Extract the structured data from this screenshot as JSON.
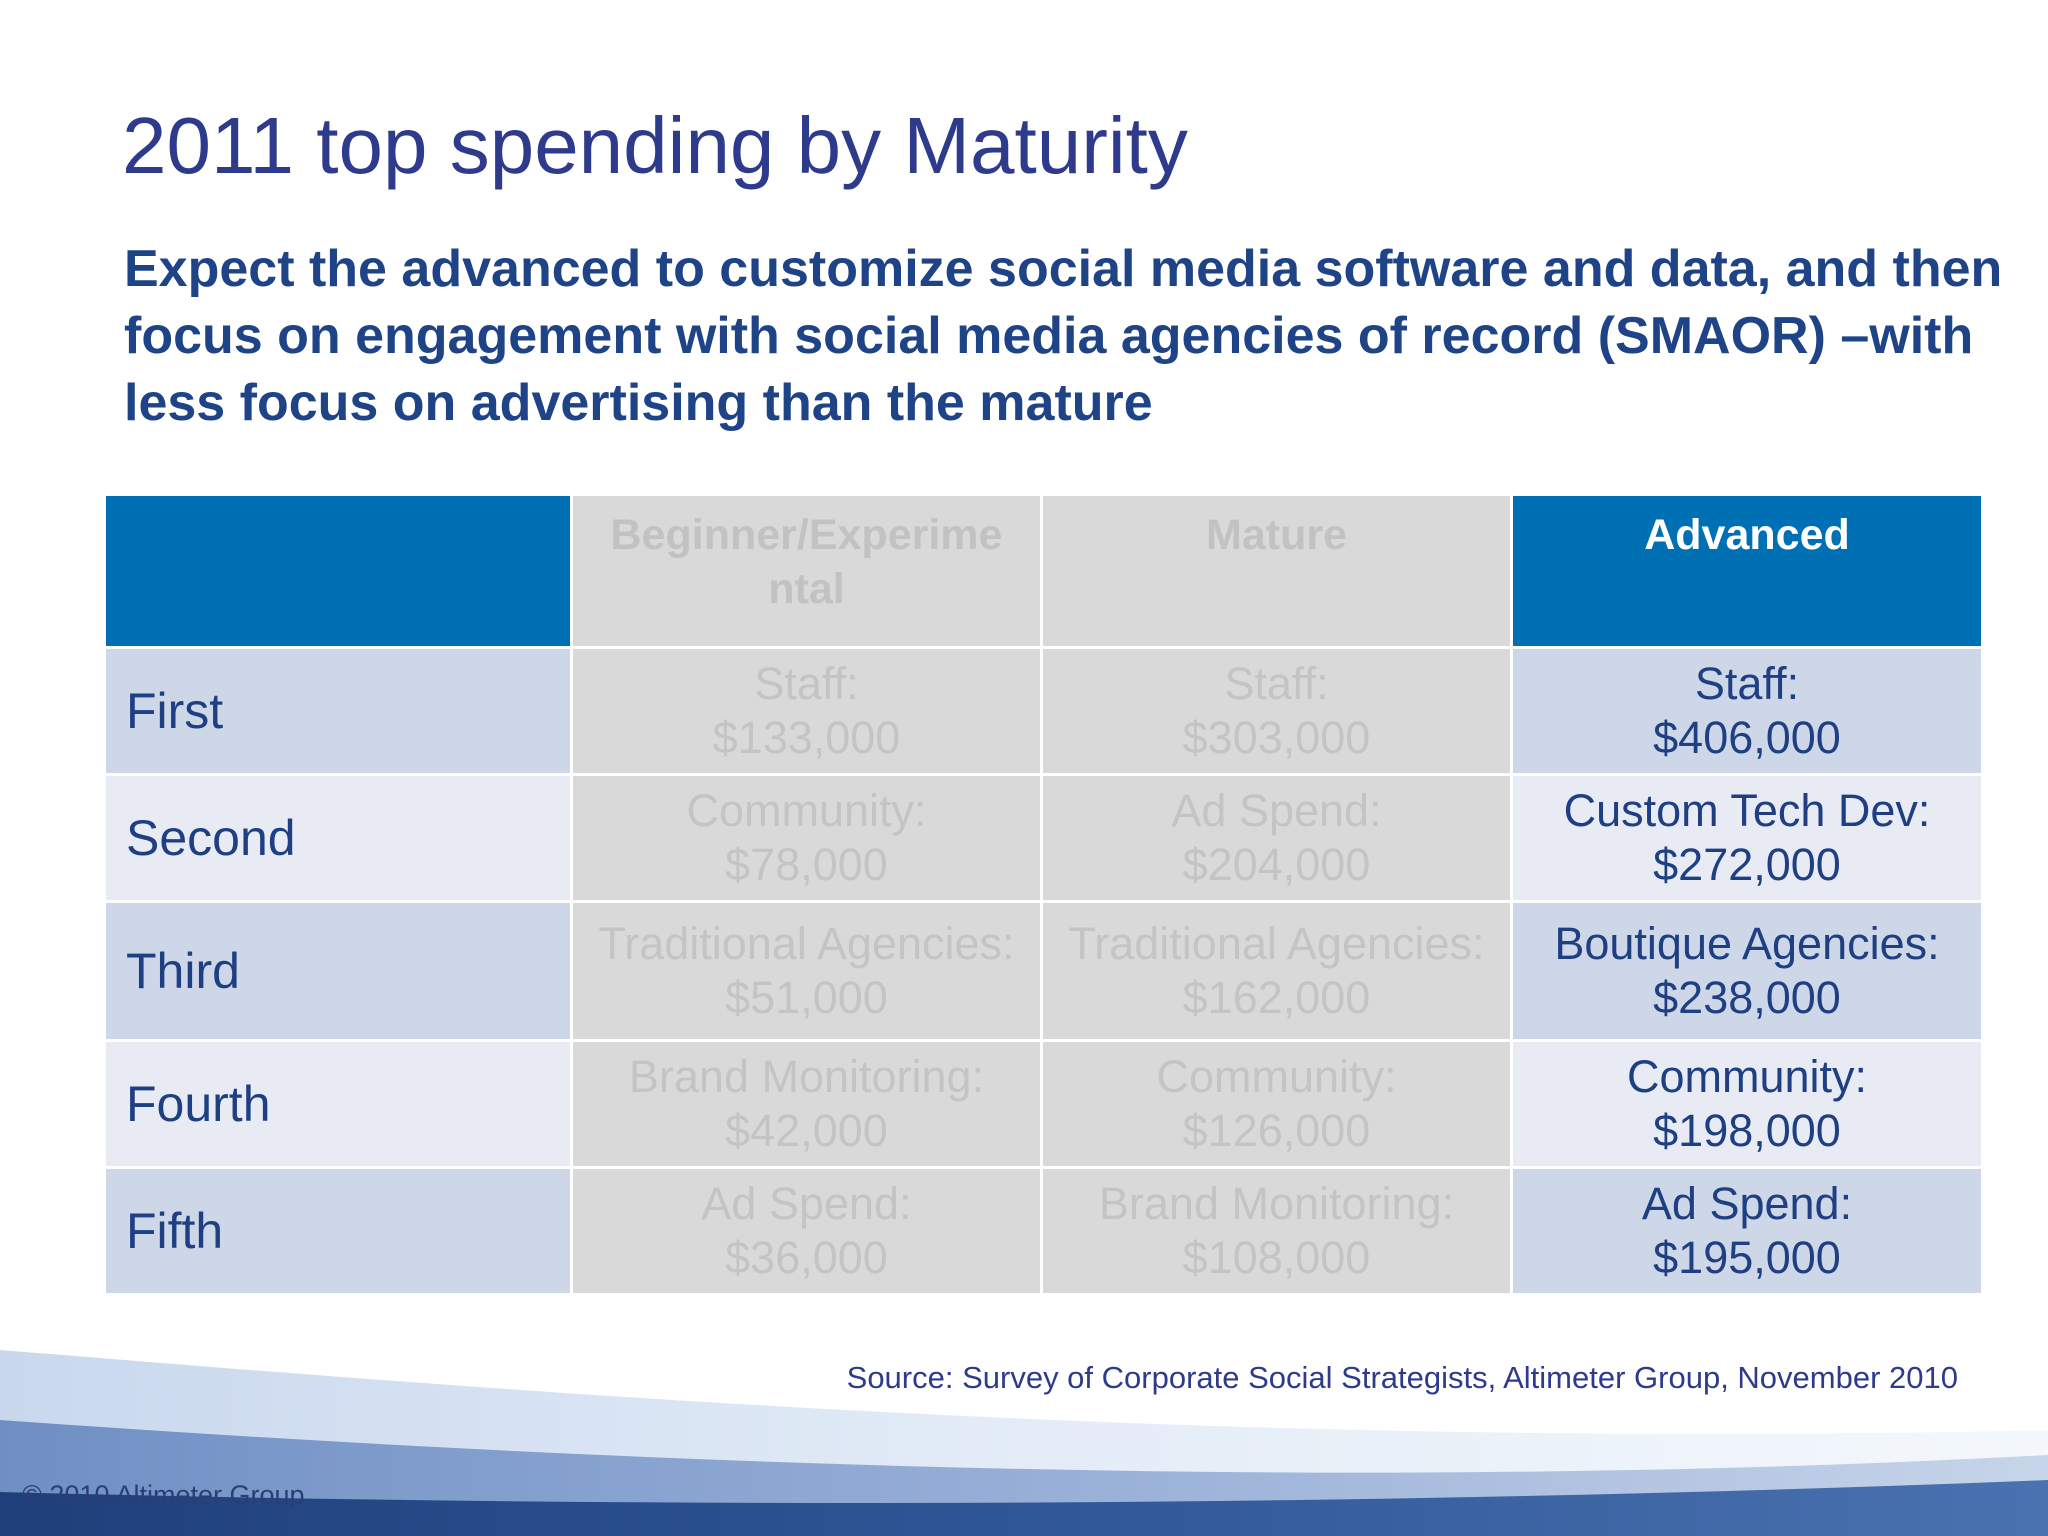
{
  "title": "2011 top spending by Maturity",
  "subtitle": "Expect the advanced to customize social media software and data, and then focus on engagement with social media agencies of record (SMAOR) –with less focus on advertising than the mature",
  "table": {
    "headers": {
      "corner": "",
      "beginner": "Beginner/Experime ntal",
      "mature": "Mature",
      "advanced": "Advanced"
    },
    "rows": [
      {
        "label": "First",
        "beginner": {
          "name": "Staff:",
          "value": "$133,000"
        },
        "mature": {
          "name": "Staff:",
          "value": "$303,000"
        },
        "advanced": {
          "name": "Staff:",
          "value": "$406,000"
        }
      },
      {
        "label": "Second",
        "beginner": {
          "name": "Community:",
          "value": "$78,000"
        },
        "mature": {
          "name": "Ad Spend:",
          "value": "$204,000"
        },
        "advanced": {
          "name": "Custom Tech Dev:",
          "value": "$272,000"
        }
      },
      {
        "label": "Third",
        "beginner": {
          "name": "Traditional Agencies:",
          "value": "$51,000"
        },
        "mature": {
          "name": "Traditional Agencies:",
          "value": "$162,000"
        },
        "advanced": {
          "name": "Boutique Agencies:",
          "value": "$238,000"
        }
      },
      {
        "label": "Fourth",
        "beginner": {
          "name": "Brand Monitoring:",
          "value": "$42,000"
        },
        "mature": {
          "name": "Community:",
          "value": "$126,000"
        },
        "advanced": {
          "name": "Community:",
          "value": "$198,000"
        }
      },
      {
        "label": "Fifth",
        "beginner": {
          "name": "Ad Spend:",
          "value": "$36,000"
        },
        "mature": {
          "name": "Brand Monitoring:",
          "value": "$108,000"
        },
        "advanced": {
          "name": "Ad Spend:",
          "value": "$195,000"
        }
      }
    ]
  },
  "source": "Source: Survey of Corporate Social Strategists, Altimeter Group, November 2010",
  "copyright": "© 2010 Altimeter Group",
  "colors": {
    "title": "#2e3a8c",
    "subtitle": "#1f4387",
    "header_accent": "#0070b4",
    "row_dark": "#cdd7e8",
    "row_light": "#e8ebf4",
    "faded_cell": "#d9d9d9"
  }
}
